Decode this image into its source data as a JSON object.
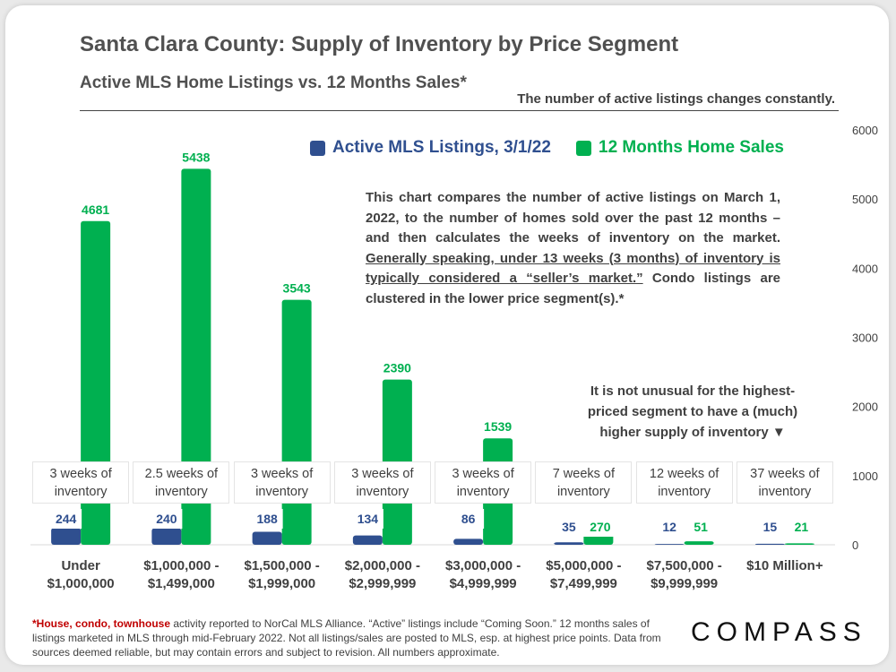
{
  "title": "Santa Clara County: Supply of Inventory by Price Segment",
  "subtitle": "Active MLS Home Listings vs. 12 Months Sales*",
  "note_top": "The number of active listings changes constantly.",
  "description": {
    "part1": "This chart compares the number of active listings on March 1, 2022, to the number of homes sold over the past 12 months – and then calculates the weeks of inventory on the market. ",
    "underlined": "Generally speaking, under 13 weeks (3 months) of inventory is typically considered a “seller’s market.”",
    "part2": " Condo listings are clustered in the lower price segment(s).*"
  },
  "side_note": "It is not unusual for the highest-priced segment to have a (much) higher supply of inventory ▼",
  "weeks_of_inventory": [
    {
      "line1": "3 weeks of",
      "line2": "inventory"
    },
    {
      "line1": "2.5 weeks of",
      "line2": "inventory"
    },
    {
      "line1": "3 weeks of",
      "line2": "inventory"
    },
    {
      "line1": "3 weeks of",
      "line2": "inventory"
    },
    {
      "line1": "3 weeks of",
      "line2": "inventory"
    },
    {
      "line1": "7 weeks of",
      "line2": "inventory"
    },
    {
      "line1": "12 weeks of",
      "line2": "inventory"
    },
    {
      "line1": "37 weeks of",
      "line2": "inventory"
    }
  ],
  "footnote": {
    "star": "*",
    "red_text": "House, condo, townhouse",
    "rest": " activity reported to NorCal MLS Alliance. “Active” listings include “Coming Soon.” 12 months sales of listings marketed in MLS through mid-February 2022. Not all listings/sales are posted to MLS, esp. at highest price points. Data from sources deemed reliable, but may contain errors and subject to revision.  All numbers approximate."
  },
  "logo": "COMPASS",
  "colors": {
    "active": "#2f4f8f",
    "sales": "#00b050",
    "text": "#404040"
  },
  "chart_data": {
    "type": "bar",
    "title": "Santa Clara County: Supply of Inventory by Price Segment",
    "categories": [
      [
        "Under",
        "$1,000,000"
      ],
      [
        "$1,000,000 -",
        "$1,499,000"
      ],
      [
        "$1,500,000 -",
        "$1,999,000"
      ],
      [
        "$2,000,000 -",
        "$2,999,999"
      ],
      [
        "$3,000,000 -",
        "$4,999,999"
      ],
      [
        "$5,000,000 -",
        "$7,499,999"
      ],
      [
        "$7,500,000 -",
        "$9,999,999"
      ],
      [
        "$10 Million+"
      ]
    ],
    "series": [
      {
        "name": "Active MLS Listings, 3/1/22",
        "values": [
          244,
          240,
          188,
          134,
          86,
          35,
          12,
          15
        ]
      },
      {
        "name": "12 Months Home Sales",
        "values": [
          4681,
          5438,
          3543,
          2390,
          1539,
          270,
          51,
          21
        ]
      }
    ],
    "ylim": [
      0,
      6000
    ],
    "yticks": [
      0,
      1000,
      2000,
      3000,
      4000,
      5000,
      6000
    ],
    "ylabel": "",
    "xlabel": "",
    "legend": "top"
  }
}
